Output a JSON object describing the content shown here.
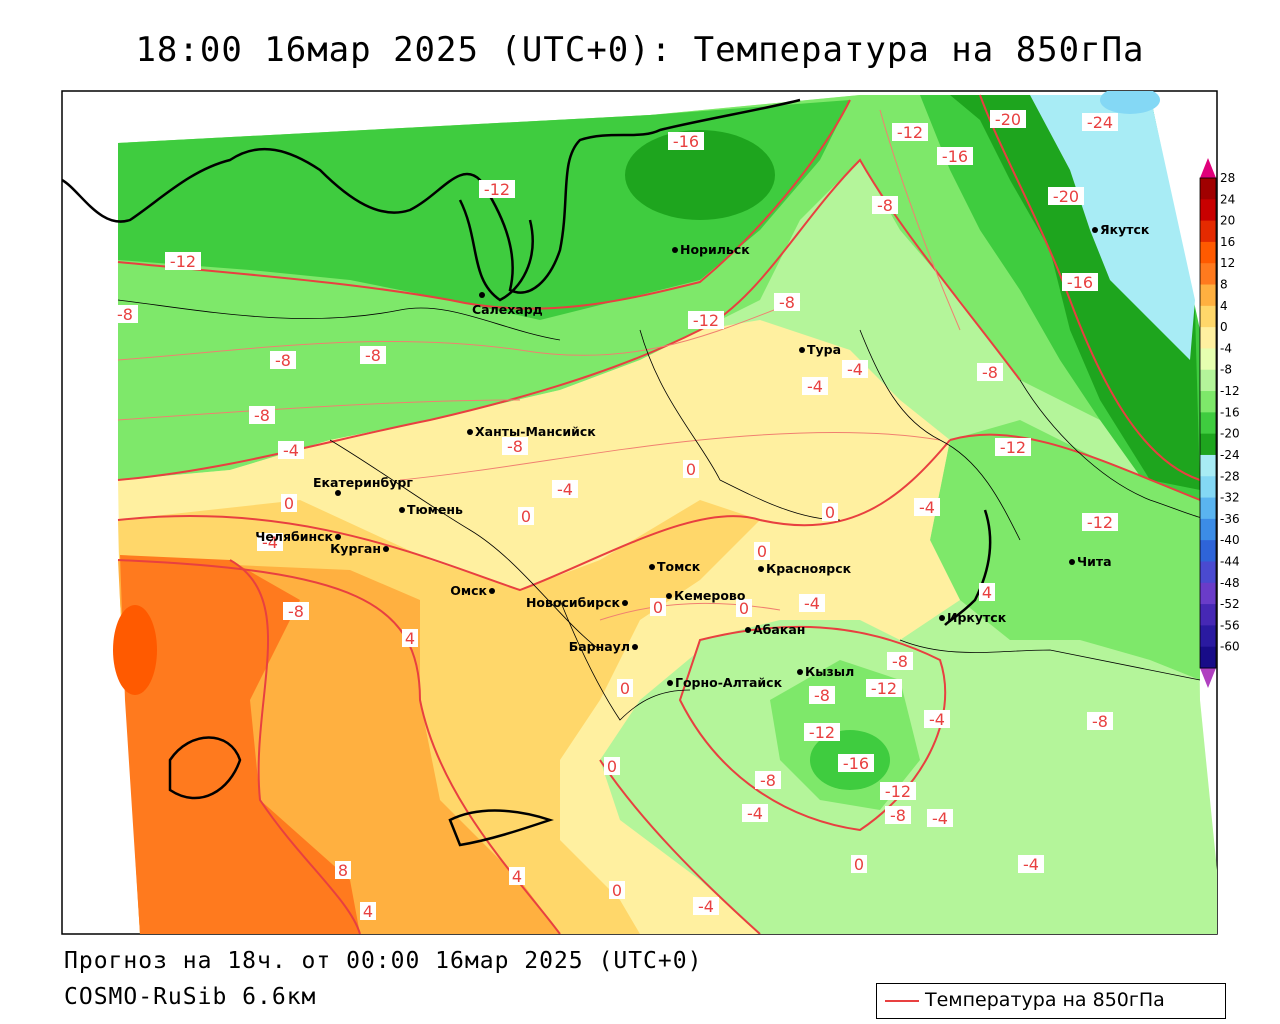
{
  "title": "18:00 16мар 2025 (UTC+0): Температура на 850гПа",
  "footer": {
    "forecast": "Прогноз на 18ч. от 00:00 16мар 2025 (UTC+0)",
    "model": "COSMO-RuSib 6.6км"
  },
  "legend": {
    "label": "Температура на 850гПа",
    "line_color": "#e84040"
  },
  "scale": {
    "values": [
      "28",
      "24",
      "20",
      "16",
      "12",
      "8",
      "4",
      "0",
      "-4",
      "-8",
      "-12",
      "-16",
      "-20",
      "-24",
      "-28",
      "-32",
      "-36",
      "-40",
      "-44",
      "-48",
      "-52",
      "-56",
      "-60"
    ],
    "colors": [
      "#a00000",
      "#c80000",
      "#e42a00",
      "#ff5a00",
      "#ff7a1e",
      "#ffb040",
      "#ffd76a",
      "#fff0a0",
      "#e6ffb0",
      "#b4f59a",
      "#7ee86a",
      "#3fcc3f",
      "#1ea51e",
      "#a8ecf5",
      "#84d8f5",
      "#5ab4f0",
      "#3c8ce6",
      "#2e64d8",
      "#4a4ad0",
      "#6a3cc8",
      "#4628b4",
      "#2a1aa0",
      "#180c88"
    ]
  },
  "cities": [
    {
      "name": "Норильск"
    },
    {
      "name": "Салехард"
    },
    {
      "name": "Якутск"
    },
    {
      "name": "Тура"
    },
    {
      "name": "Ханты-Мансийск"
    },
    {
      "name": "Екатеринбург"
    },
    {
      "name": "Тюмень"
    },
    {
      "name": "Челябинск"
    },
    {
      "name": "Курган"
    },
    {
      "name": "Омск"
    },
    {
      "name": "Новосибирск"
    },
    {
      "name": "Томск"
    },
    {
      "name": "Кемерово"
    },
    {
      "name": "Красноярск"
    },
    {
      "name": "Барнаул"
    },
    {
      "name": "Абакан"
    },
    {
      "name": "Горно-Алтайск"
    },
    {
      "name": "Кызыл"
    },
    {
      "name": "Иркутск"
    },
    {
      "name": "Чита"
    }
  ],
  "contour_labels": [
    "-16",
    "-12",
    "-20",
    "-24",
    "-16",
    "-8",
    "-12",
    "-20",
    "-16",
    "-12",
    "-8",
    "-12",
    "-8",
    "-8",
    "-8",
    "-4",
    "-4",
    "-8",
    "-8",
    "-12",
    "-4",
    "-4",
    "-8",
    "0",
    "-4",
    "0",
    "0",
    "-4",
    "-12",
    "0",
    "0",
    "-4",
    "0",
    "4",
    "-8",
    "4",
    "0",
    "-8",
    "-12",
    "-4",
    "-8",
    "-12",
    "-16",
    "-8",
    "-12",
    "-8",
    "-4",
    "-4",
    "0",
    "0",
    "4",
    "8",
    "4",
    "0",
    "0",
    "-4",
    "-4",
    "-8"
  ]
}
